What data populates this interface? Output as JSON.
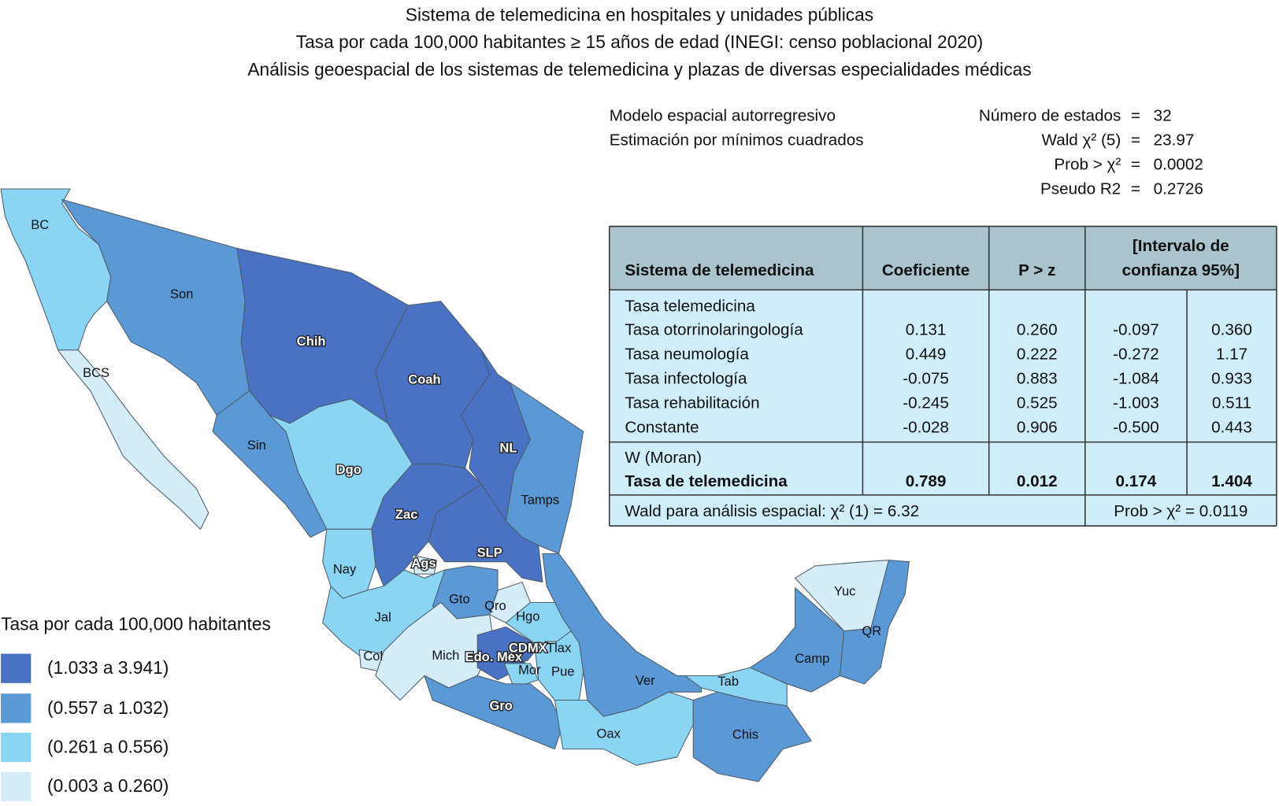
{
  "title_lines": [
    "Sistema de telemedicina en hospitales y unidades públicas",
    "Tasa por cada 100,000 habitantes ≥ 15 años de edad (INEGI: censo poblacional 2020)",
    "Análisis geoespacial de los sistemas de telemedicina y plazas de diversas especialidades médicas"
  ],
  "model": {
    "lines": [
      "Modelo espacial autorregresivo",
      "Estimación por mínimos cuadrados"
    ],
    "stats": [
      [
        "Número de estados",
        "=",
        "32"
      ],
      [
        "Wald χ² (5)",
        "=",
        "23.97"
      ],
      [
        "Prob > χ²",
        "=",
        "0.0002"
      ],
      [
        "Pseudo R2",
        "=",
        "0.2726"
      ]
    ]
  },
  "table": {
    "header": [
      "Sistema de telemedicina",
      "Coeficiente",
      "P > z",
      [
        "[Intervalo de",
        "confianza 95%]"
      ]
    ],
    "group_1": "Tasa telemedicina",
    "rows": [
      [
        "Tasa otorrinolaringología",
        "0.131",
        "0.260",
        "-0.097",
        "0.360"
      ],
      [
        "Tasa neumología",
        "0.449",
        "0.222",
        "-0.272",
        "1.17"
      ],
      [
        "Tasa infectología",
        "-0.075",
        "0.883",
        "-1.084",
        "0.933"
      ],
      [
        "Tasa rehabilitación",
        "-0.245",
        "0.525",
        "-1.003",
        "0.511"
      ],
      [
        "Constante",
        "-0.028",
        "0.906",
        "-0.500",
        "0.443"
      ]
    ],
    "group_2": "W (Moran)",
    "moran_row": [
      "Tasa de telemedicina",
      "0.789",
      "0.012",
      "0.174",
      "1.404"
    ],
    "footer": [
      "Wald para análisis espacial: χ² (1) = 6.32",
      "Prob > χ² = 0.0119"
    ]
  },
  "legend": {
    "title": "Tasa por cada 100,000 habitantes",
    "items": [
      {
        "label": "(1.033 a 3.941)",
        "color": "#4a72c4"
      },
      {
        "label": "(0.557 a 1.032)",
        "color": "#5b98d6"
      },
      {
        "label": "(0.261 a 0.556)",
        "color": "#8ad4f4"
      },
      {
        "label": "(0.003 a 0.260)",
        "color": "#d4edf9"
      }
    ]
  },
  "map": {
    "states": [
      {
        "label": "BC",
        "color": "#8ad4f4"
      },
      {
        "label": "BCS",
        "color": "#d4edf9"
      },
      {
        "label": "Son",
        "color": "#5b98d6"
      },
      {
        "label": "Chih",
        "color": "#4a72c4"
      },
      {
        "label": "Coah",
        "color": "#4a72c4"
      },
      {
        "label": "NL",
        "color": "#4a72c4"
      },
      {
        "label": "Tamps",
        "color": "#5b98d6"
      },
      {
        "label": "Sin",
        "color": "#5b98d6"
      },
      {
        "label": "Dgo",
        "color": "#8ad4f4"
      },
      {
        "label": "Zac",
        "color": "#4a72c4"
      },
      {
        "label": "SLP",
        "color": "#4a72c4"
      },
      {
        "label": "Nay",
        "color": "#8ad4f4"
      },
      {
        "label": "Ags",
        "color": "#d4edf9"
      },
      {
        "label": "Jal",
        "color": "#8ad4f4"
      },
      {
        "label": "Col",
        "color": "#d4edf9"
      },
      {
        "label": "Gto",
        "color": "#5b98d6"
      },
      {
        "label": "Qro",
        "color": "#d4edf9"
      },
      {
        "label": "Hgo",
        "color": "#8ad4f4"
      },
      {
        "label": "Mich",
        "color": "#d4edf9"
      },
      {
        "label": "Edo. Méx",
        "color": "#4a72c4"
      },
      {
        "label": "CDMX",
        "color": "#4a72c4"
      },
      {
        "label": "Mor",
        "color": "#8ad4f4"
      },
      {
        "label": "Tlax",
        "color": "#d4edf9"
      },
      {
        "label": "Pue",
        "color": "#8ad4f4"
      },
      {
        "label": "Gro",
        "color": "#5b98d6"
      },
      {
        "label": "Ver",
        "color": "#5b98d6"
      },
      {
        "label": "Oax",
        "color": "#8ad4f4"
      },
      {
        "label": "Tab",
        "color": "#8ad4f4"
      },
      {
        "label": "Chis",
        "color": "#5b98d6"
      },
      {
        "label": "Camp",
        "color": "#5b98d6"
      },
      {
        "label": "Yuc",
        "color": "#d4edf9"
      },
      {
        "label": "QR",
        "color": "#5b98d6"
      }
    ]
  }
}
